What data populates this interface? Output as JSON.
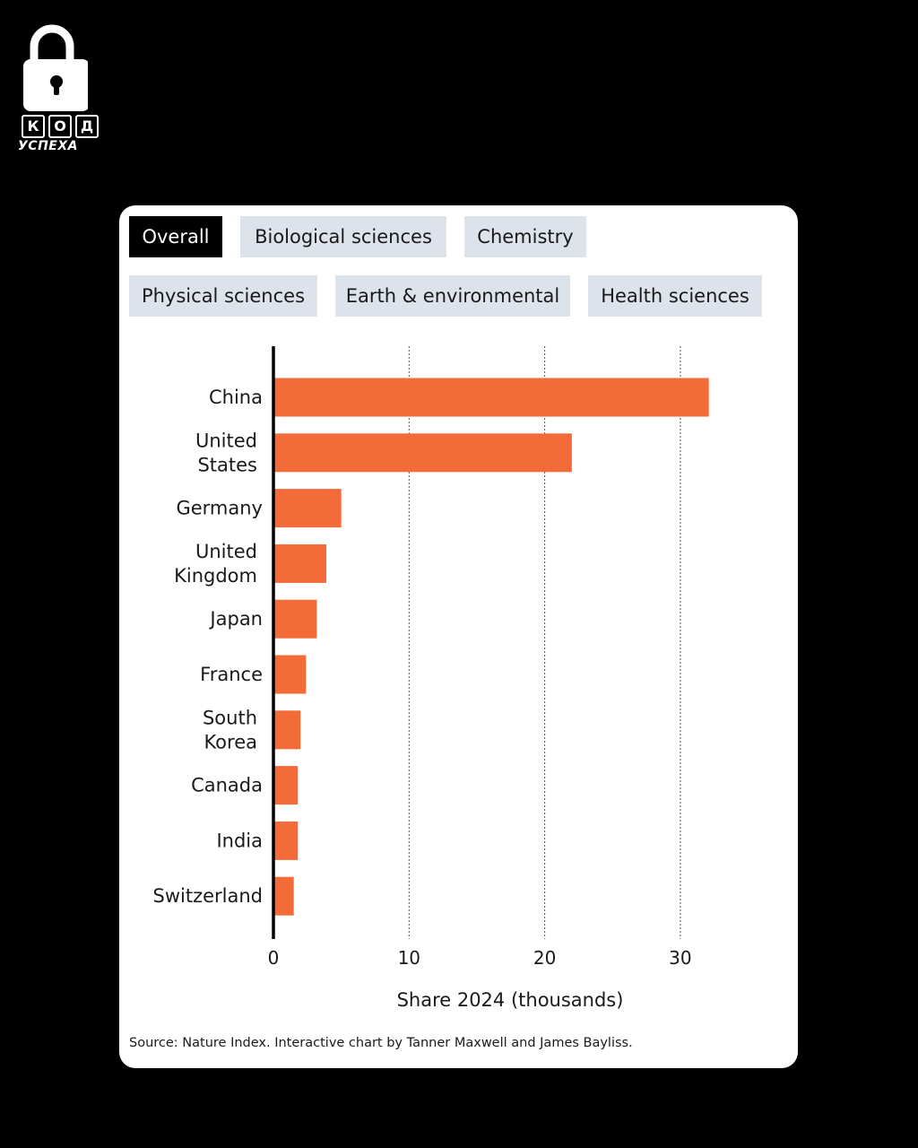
{
  "logo": {
    "letters": [
      "К",
      "О",
      "Д"
    ],
    "subtitle": "УСПЕХА"
  },
  "tabs": [
    {
      "label": "Overall",
      "active": true
    },
    {
      "label": "Biological sciences",
      "active": false
    },
    {
      "label": "Chemistry",
      "active": false
    },
    {
      "label": "Physical sciences",
      "active": false
    },
    {
      "label": "Earth & environmental",
      "active": false
    },
    {
      "label": "Health sciences",
      "active": false
    }
  ],
  "colors": {
    "bar": "#f26b38",
    "axis": "#000000",
    "grid": "#555555",
    "tab_bg": "#dde3ea",
    "tab_active_bg": "#000000"
  },
  "chart_data": {
    "type": "bar",
    "orientation": "horizontal",
    "categories": [
      [
        "China"
      ],
      [
        "United",
        "States"
      ],
      [
        "Germany"
      ],
      [
        "United",
        "Kingdom"
      ],
      [
        "Japan"
      ],
      [
        "France"
      ],
      [
        "South",
        "Korea"
      ],
      [
        "Canada"
      ],
      [
        "India"
      ],
      [
        "Switzerland"
      ]
    ],
    "values": [
      32.1,
      22.0,
      5.0,
      3.9,
      3.2,
      2.4,
      2.0,
      1.8,
      1.8,
      1.5
    ],
    "xlabel": "Share 2024 (thousands)",
    "xticks": [
      0,
      10,
      20,
      30
    ],
    "xlim": [
      0,
      30.5
    ],
    "grid": "vertical dashed"
  },
  "source": "Source: Nature Index. Interactive chart by Tanner Maxwell and James Bayliss."
}
